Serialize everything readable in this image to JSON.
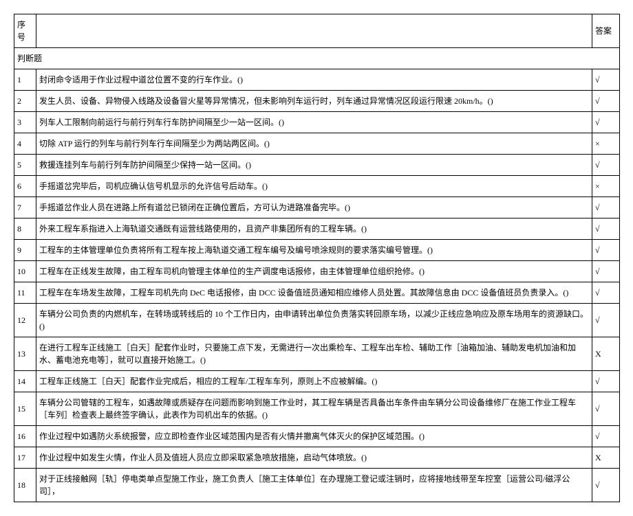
{
  "headers": {
    "num": "序号",
    "answer": "答案"
  },
  "section": "判断题",
  "rows": [
    {
      "num": "1",
      "content": "封闭命令适用于作业过程中道岔位置不变的行车作业。()",
      "answer": "√"
    },
    {
      "num": "2",
      "content": "发生人员、设备、异物侵入线路及设备冒火星等异常情况，但未影响列车运行时，列车通过异常情况区段运行限速 20km/h。()",
      "answer": "√"
    },
    {
      "num": "3",
      "content": "列车人工限制向前运行与前行列车行车防护间隔至少一站一区间。()",
      "answer": "√"
    },
    {
      "num": "4",
      "content": "切除 ATP 运行的列车与前行列车行车间隔至少为两站两区间。()",
      "answer": "×"
    },
    {
      "num": "5",
      "content": "救援连挂列车与前行列车防护间隔至少保持一站一区间。()",
      "answer": "√"
    },
    {
      "num": "6",
      "content": "手摇道岔完毕后，司机应确认信号机显示的允许信号后动车。()",
      "answer": "×"
    },
    {
      "num": "7",
      "content": "手摇道岔作业人员在进路上所有道岔已锁闭在正确位置后，方可认为进路准备完毕。()",
      "answer": "√"
    },
    {
      "num": "8",
      "content": "外来工程车系指进入上海轨道交通既有运营线路使用的，且资产非集团所有的工程车辆。()",
      "answer": "√"
    },
    {
      "num": "9",
      "content": "工程车的主体管理单位负责将所有工程车按上海轨道交通工程车编号及编号喷涂规则的要求落实编号管理。()",
      "answer": "√"
    },
    {
      "num": "10",
      "content": "工程车在正线发生故障，由工程车司机向管理主体单位的生产调度电话报修，由主体管理单位组织抢修。()",
      "answer": "√"
    },
    {
      "num": "11",
      "content": "工程车在车场发生故障，工程车司机先向 DeC 电话报修，由 DCC 设备值班员通知相应维修人员处置。其故障信息由 DCC 设备值班员负责录入。()",
      "answer": "√"
    },
    {
      "num": "12",
      "content": "车辆分公司负责的内燃机车，在转场或转线后的 10 个工作日内，由申请转出单位负责落实转回原车场，以减少正线应急响应及原车场用车的资源缺口。()",
      "answer": "√"
    },
    {
      "num": "13",
      "content": "在进行工程车正线施工［白天］配套作业时，只要施工点下发，无需进行一次出乘检车、工程车出车检、辅助工作［油箱加油、辅助发电机加油和加水、蓄电池充电等］，就可以直接开始施工。()",
      "answer": "X"
    },
    {
      "num": "14",
      "content": "工程车正线施工［白天］配套作业完成后，相应的工程车/工程车车列，原则上不应被解编。()",
      "answer": "√"
    },
    {
      "num": "15",
      "content": "车辆分公司管辖的工程车，如遇故障或质疑存在问题而影响到施工作业时，其工程车辆是否具备出车条件由车辆分公司设备维修厂在施工作业工程车［车列］检查表上最终签字确认，此表作为司机出车的依据。()",
      "answer": "√"
    },
    {
      "num": "16",
      "content": "作业过程中如遇防火系统报警，应立即检查作业区域范围内是否有火情并撤离气体灭火的保护区域范围。()",
      "answer": "√"
    },
    {
      "num": "17",
      "content": "作业过程中如发生火情，作业人员及值班人员应立即采取紧急喷放措施，启动气体喷放。()",
      "answer": "X"
    },
    {
      "num": "18",
      "content": "对于正线接触网［轨］停电类单点型施工作业，施工负责人［施工主体单位］在办理施工登记或注销时，应将接地线带至车控室［运营公司/磁浮公司］，",
      "answer": "√"
    }
  ]
}
